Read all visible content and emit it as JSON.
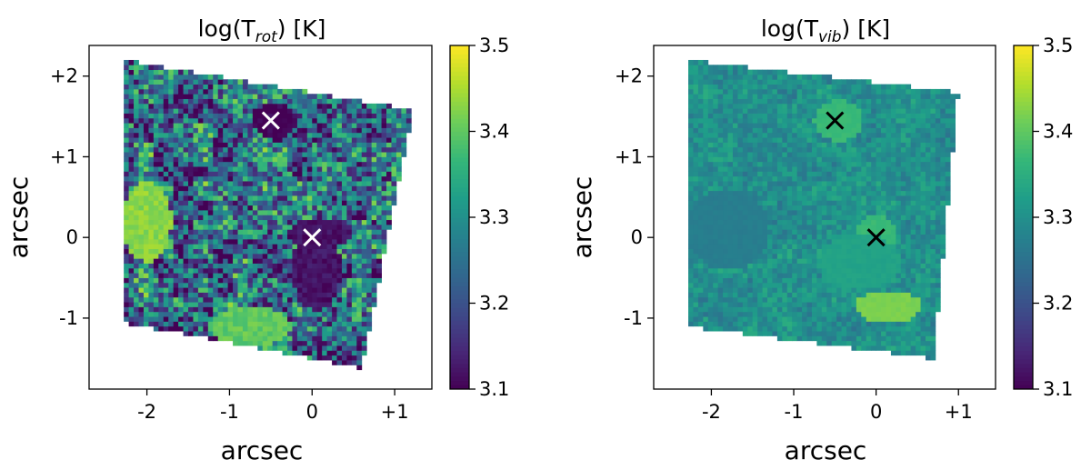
{
  "chart_data": [
    {
      "type": "heatmap",
      "title": "log(T",
      "title_sub": "rot",
      "title_suffix": ") [K]",
      "xlabel": "arcsec",
      "ylabel": "arcsec",
      "xlim": [
        -2.7,
        1.45
      ],
      "ylim": [
        -1.88,
        2.38
      ],
      "xticks": [
        {
          "value": -2,
          "label": "-2"
        },
        {
          "value": -1,
          "label": "-1"
        },
        {
          "value": 0,
          "label": "0"
        },
        {
          "value": 1,
          "label": "+1"
        }
      ],
      "yticks": [
        {
          "value": 2,
          "label": "+2"
        },
        {
          "value": 1,
          "label": "+1"
        },
        {
          "value": 0,
          "label": "0"
        },
        {
          "value": -1,
          "label": "-1"
        }
      ],
      "colorbar": {
        "colormap": "viridis",
        "range": [
          3.1,
          3.5
        ],
        "ticks": [
          "3.1",
          "3.2",
          "3.3",
          "3.4",
          "3.5"
        ],
        "tick_values": [
          3.1,
          3.2,
          3.3,
          3.4,
          3.5
        ]
      },
      "map_corners": [
        [
          -2.3,
          2.2
        ],
        [
          1.22,
          1.58
        ],
        [
          0.6,
          -1.62
        ],
        [
          -2.3,
          -1.05
        ]
      ],
      "base_value": 3.24,
      "markers": [
        {
          "x": -0.5,
          "y": 1.45,
          "symbol": "x",
          "color": "#ffffff"
        },
        {
          "x": 0.0,
          "y": 0.0,
          "symbol": "x",
          "color": "#ffffff"
        }
      ],
      "regions": [
        {
          "x": -0.45,
          "y": 1.45,
          "rx": 0.25,
          "ry": 0.22,
          "value": 3.1
        },
        {
          "x": 0.05,
          "y": -0.4,
          "rx": 0.3,
          "ry": 0.5,
          "value": 3.12
        },
        {
          "x": 0.1,
          "y": 0.05,
          "rx": 0.4,
          "ry": 0.18,
          "value": 3.12
        },
        {
          "x": -2.0,
          "y": 0.2,
          "rx": 0.3,
          "ry": 0.5,
          "value": 3.43
        },
        {
          "x": -0.75,
          "y": -1.1,
          "rx": 0.5,
          "ry": 0.25,
          "value": 3.4
        }
      ]
    },
    {
      "type": "heatmap",
      "title": "log(T",
      "title_sub": "vib",
      "title_suffix": ") [K]",
      "xlabel": "arcsec",
      "ylabel": "arcsec",
      "xlim": [
        -2.7,
        1.45
      ],
      "ylim": [
        -1.88,
        2.38
      ],
      "xticks": [
        {
          "value": -2,
          "label": "-2"
        },
        {
          "value": -1,
          "label": "-1"
        },
        {
          "value": 0,
          "label": "0"
        },
        {
          "value": 1,
          "label": "+1"
        }
      ],
      "yticks": [
        {
          "value": 2,
          "label": "+2"
        },
        {
          "value": 1,
          "label": "+1"
        },
        {
          "value": 0,
          "label": "0"
        },
        {
          "value": -1,
          "label": "-1"
        }
      ],
      "colorbar": {
        "colormap": "viridis",
        "range": [
          3.1,
          3.5
        ],
        "ticks": [
          "3.1",
          "3.2",
          "3.3",
          "3.4",
          "3.5"
        ],
        "tick_values": [
          3.1,
          3.2,
          3.3,
          3.4,
          3.5
        ]
      },
      "map_corners": [
        [
          -2.3,
          2.2
        ],
        [
          1.0,
          1.8
        ],
        [
          0.7,
          -1.5
        ],
        [
          -2.3,
          -1.1
        ]
      ],
      "base_value": 3.3,
      "markers": [
        {
          "x": -0.5,
          "y": 1.45,
          "symbol": "x",
          "color": "#000000"
        },
        {
          "x": 0.0,
          "y": 0.0,
          "symbol": "x",
          "color": "#000000"
        }
      ],
      "regions": [
        {
          "x": -0.45,
          "y": 1.45,
          "rx": 0.3,
          "ry": 0.25,
          "value": 3.37
        },
        {
          "x": 0.0,
          "y": 0.0,
          "rx": 0.25,
          "ry": 0.3,
          "value": 3.37
        },
        {
          "x": 0.15,
          "y": -0.85,
          "rx": 0.4,
          "ry": 0.2,
          "value": 3.42
        },
        {
          "x": -0.2,
          "y": -0.3,
          "rx": 0.5,
          "ry": 0.35,
          "value": 3.33
        },
        {
          "x": -1.8,
          "y": 0.1,
          "rx": 0.5,
          "ry": 0.5,
          "value": 3.27
        }
      ]
    }
  ]
}
